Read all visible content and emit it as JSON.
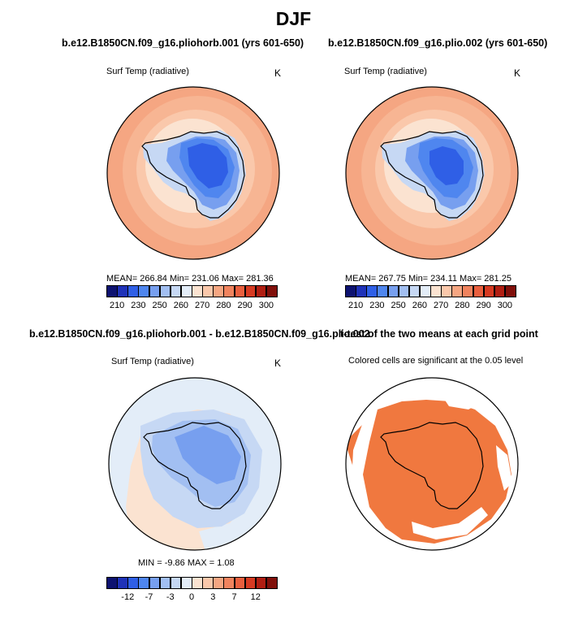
{
  "figure": {
    "title": "DJF"
  },
  "panels": {
    "top_left": {
      "title": "b.e12.B1850CN.f09_g16.pliohorb.001 (yrs 601-650)",
      "subtitle": "Surf Temp (radiative)",
      "units": "K",
      "stats": "MEAN= 266.84   Min= 231.06   Max= 281.36"
    },
    "top_right": {
      "title": "b.e12.B1850CN.f09_g16.plio.002 (yrs 601-650)",
      "subtitle": "Surf Temp (radiative)",
      "units": "K",
      "stats": "MEAN= 267.75   Min= 234.11   Max= 281.25"
    },
    "bottom_left": {
      "title": "b.e12.B1850CN.f09_g16.pliohorb.001 - b.e12.B1850CN.f09_g16.plio.002",
      "subtitle": "Surf Temp (radiative)",
      "units": "K",
      "stats": "MIN =   -9.86  MAX =    1.08"
    },
    "bottom_right": {
      "title": "t-test of the two means at each grid point",
      "subtitle": "Colored cells are significant at the 0.05 level"
    }
  },
  "colorbars": {
    "temperature": {
      "colors": [
        "#0d1270",
        "#1f32b8",
        "#2f5fe6",
        "#4f86ef",
        "#779fef",
        "#a2bff2",
        "#c6d8f4",
        "#e3edf8",
        "#fbe3d1",
        "#fac8ab",
        "#f5a682",
        "#f0835e",
        "#e95f3e",
        "#d63a22",
        "#b01e12",
        "#800f0a"
      ],
      "labels": [
        "210",
        "230",
        "250",
        "260",
        "270",
        "280",
        "290",
        "300"
      ],
      "label_positions": [
        1,
        3,
        5,
        7,
        9,
        11,
        13,
        15
      ]
    },
    "difference": {
      "colors": [
        "#0d1270",
        "#1f32b8",
        "#2f5fe6",
        "#4f86ef",
        "#779fef",
        "#a2bff2",
        "#c6d8f4",
        "#e3edf8",
        "#fbe3d1",
        "#fac8ab",
        "#f5a682",
        "#f0835e",
        "#e95f3e",
        "#d63a22",
        "#b01e12",
        "#800f0a"
      ],
      "labels": [
        "-12",
        "-7",
        "-3",
        "0",
        "3",
        "7",
        "12"
      ],
      "label_positions": [
        2,
        4,
        6,
        8,
        10,
        12,
        14
      ]
    }
  }
}
